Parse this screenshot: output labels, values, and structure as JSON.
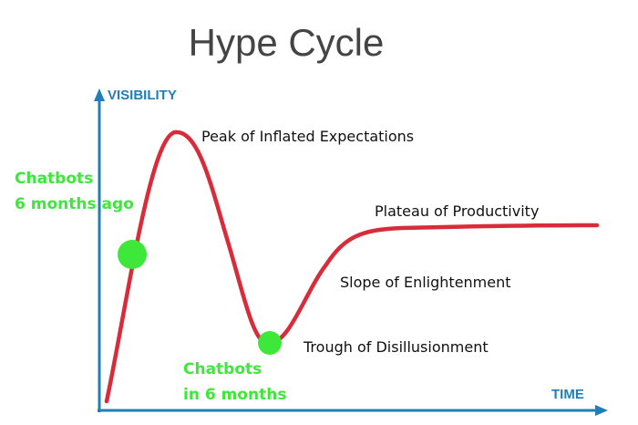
{
  "title": "Hype Cycle",
  "axes": {
    "y_label": "VISIBILITY",
    "x_label": "TIME"
  },
  "phases": [
    "Peak of Inflated Expectations",
    "Plateau of Productivity",
    "Slope of Enlightenment",
    "Trough of Disillusionment"
  ],
  "annotations": {
    "before": {
      "line1": "Chatbots",
      "line2": "6 months ago"
    },
    "after": {
      "line1": "Chatbots",
      "line2": "in 6 months"
    }
  },
  "colors": {
    "curve": "#d92c3a",
    "axis": "#1f7fb6",
    "marker": "#3ee83a",
    "title": "#444444"
  }
}
